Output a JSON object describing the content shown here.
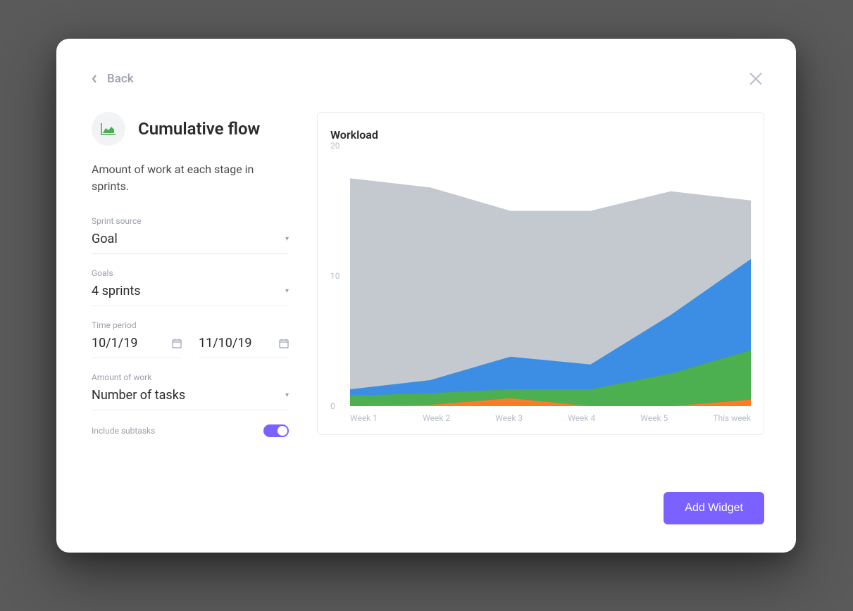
{
  "nav": {
    "back_label": "Back"
  },
  "header": {
    "title": "Cumulative flow",
    "description": "Amount of work at each stage in sprints."
  },
  "form": {
    "sprint_source": {
      "label": "Sprint source",
      "value": "Goal"
    },
    "goals": {
      "label": "Goals",
      "value": "4 sprints"
    },
    "time_period": {
      "label": "Time period",
      "start": "10/1/19",
      "end": "11/10/19"
    },
    "amount_of_work": {
      "label": "Amount of work",
      "value": "Number of tasks"
    },
    "include_subtasks": {
      "label": "Include subtasks",
      "enabled": true
    }
  },
  "chart": {
    "title": "Workload",
    "type": "area-stacked",
    "ylim": [
      0,
      20
    ],
    "yticks": [
      0,
      10,
      20
    ],
    "x_labels": [
      "Week 1",
      "Week 2",
      "Week 3",
      "Week 4",
      "Week 5",
      "This week"
    ],
    "x_positions": [
      0,
      0.2,
      0.4,
      0.6,
      0.8,
      1.0
    ],
    "series": [
      {
        "name": "grey",
        "color": "#c4c9d0",
        "values": [
          17.5,
          16.8,
          15.0,
          15.0,
          16.5,
          15.8
        ]
      },
      {
        "name": "blue",
        "color": "#3b8ee3",
        "values": [
          1.3,
          2.0,
          3.8,
          3.2,
          7.0,
          11.3
        ]
      },
      {
        "name": "green",
        "color": "#4caf50",
        "values": [
          0.8,
          1.0,
          1.3,
          1.3,
          2.5,
          4.3
        ]
      },
      {
        "name": "orange",
        "color": "#ff7a29",
        "values": [
          0.0,
          0.1,
          0.6,
          0.0,
          0.0,
          0.5
        ]
      }
    ],
    "background_color": "#ffffff",
    "tick_color": "#b8bec9",
    "tick_fontsize": 12
  },
  "footer": {
    "add_widget_label": "Add Widget"
  },
  "colors": {
    "accent": "#7b61ff"
  }
}
